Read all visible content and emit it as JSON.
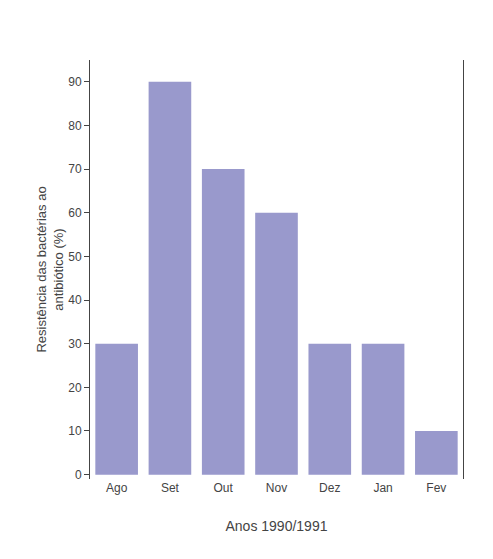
{
  "chart_data": {
    "type": "bar",
    "categories": [
      "Ago",
      "Set",
      "Out",
      "Nov",
      "Dez",
      "Jan",
      "Fev"
    ],
    "values": [
      30,
      90,
      70,
      60,
      30,
      30,
      10
    ],
    "color": "#9999cc",
    "xlabel": "Anos 1990/1991",
    "ylabel": "Resistência das bactérias ao\nantibiótico (%)",
    "ylim": [
      -1,
      95
    ],
    "yticks": [
      0,
      10,
      20,
      30,
      40,
      50,
      60,
      70,
      80,
      90
    ],
    "grid": false
  }
}
